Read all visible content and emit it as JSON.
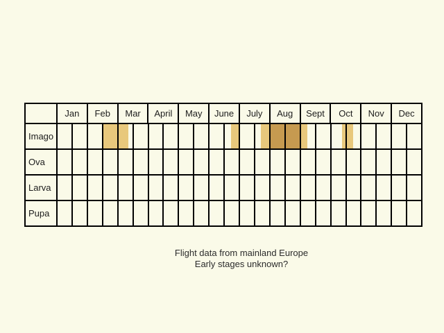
{
  "chart_data": {
    "type": "table",
    "title": "",
    "months": [
      "Jan",
      "Feb",
      "Mar",
      "April",
      "May",
      "June",
      "July",
      "Aug",
      "Sept",
      "Oct",
      "Nov",
      "Dec"
    ],
    "half_cells_per_month": 2,
    "rows": [
      "Imago",
      "Ova",
      "Larva",
      "Pupa"
    ],
    "colors": {
      "background": "#FAFAE8",
      "grid": "#000000",
      "bar_light": "#E8C87C",
      "bar_dark": "#C69A50"
    },
    "bars": [
      {
        "row": "Imago",
        "left_pct": 12.4,
        "width_pct": 7.06,
        "shade": "light",
        "period": "mid-February to early March"
      },
      {
        "row": "Imago",
        "left_pct": 47.71,
        "width_pct": 2.48,
        "shade": "light",
        "period": "late June"
      },
      {
        "row": "Imago",
        "left_pct": 55.92,
        "width_pct": 2.48,
        "shade": "light",
        "period": "late July"
      },
      {
        "row": "Imago",
        "left_pct": 58.4,
        "width_pct": 8.21,
        "shade": "dark",
        "period": "August"
      },
      {
        "row": "Imago",
        "left_pct": 66.6,
        "width_pct": 2.1,
        "shade": "light",
        "period": "early September"
      },
      {
        "row": "Imago",
        "left_pct": 78.24,
        "width_pct": 3.05,
        "shade": "light",
        "period": "mid-October"
      }
    ]
  },
  "caption": {
    "line1": "Flight data from mainland Europe",
    "line2": "Early stages unknown?"
  }
}
